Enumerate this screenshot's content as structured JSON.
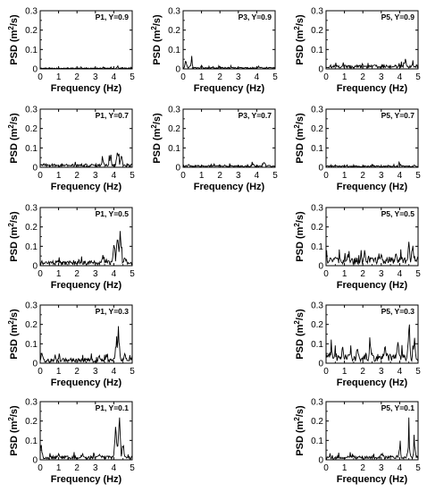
{
  "chart_data": {
    "type": "line",
    "layout": "grid",
    "rows": 5,
    "columns": [
      "P1",
      "P3",
      "P5"
    ],
    "xlabel": "Frequency (Hz)",
    "ylabel": "PSD (m²/s)",
    "ylabel_parts": {
      "prefix": "PSD (m",
      "sup": "2",
      "suffix": "/s)"
    },
    "xlim": [
      0,
      5
    ],
    "ylim": [
      0,
      0.3
    ],
    "xticks": [
      0,
      1,
      2,
      3,
      4,
      5
    ],
    "yticks": [
      0,
      0.1,
      0.2,
      0.3
    ],
    "line_color": "#000000",
    "panels": [
      {
        "row": 0,
        "col": 0,
        "label": "P1, Y=0.9",
        "peaks": [
          [
            0.5,
            0.004
          ],
          [
            2.5,
            0.004
          ],
          [
            4.2,
            0.012
          ],
          [
            4.6,
            0.006
          ]
        ],
        "base": 0.003
      },
      {
        "row": 0,
        "col": 1,
        "label": "P3, Y=0.9",
        "peaks": [
          [
            0.15,
            0.05
          ],
          [
            0.45,
            0.04
          ],
          [
            1.0,
            0.02
          ],
          [
            2.0,
            0.012
          ],
          [
            3.5,
            0.008
          ]
        ],
        "base": 0.005
      },
      {
        "row": 0,
        "col": 2,
        "label": "P5, Y=0.9",
        "peaks": [
          [
            0.6,
            0.02
          ],
          [
            2.0,
            0.02
          ],
          [
            3.3,
            0.025
          ],
          [
            4.3,
            0.06
          ],
          [
            4.7,
            0.03
          ]
        ],
        "base": 0.012
      },
      {
        "row": 1,
        "col": 0,
        "label": "P1, Y=0.7",
        "peaks": [
          [
            0.2,
            0.025
          ],
          [
            3.4,
            0.05
          ],
          [
            3.8,
            0.06
          ],
          [
            4.2,
            0.12
          ],
          [
            4.4,
            0.08
          ]
        ],
        "base": 0.01
      },
      {
        "row": 1,
        "col": 1,
        "label": "P3, Y=0.7",
        "peaks": [
          [
            0.3,
            0.02
          ],
          [
            2.0,
            0.012
          ],
          [
            3.8,
            0.025
          ],
          [
            4.4,
            0.04
          ]
        ],
        "base": 0.006
      },
      {
        "row": 1,
        "col": 2,
        "label": "P5, Y=0.7",
        "peaks": [
          [
            0.5,
            0.015
          ],
          [
            2.5,
            0.015
          ],
          [
            4.0,
            0.02
          ],
          [
            4.8,
            0.015
          ]
        ],
        "base": 0.005
      },
      {
        "row": 2,
        "col": 0,
        "label": "P1, Y=0.5",
        "peaks": [
          [
            0.3,
            0.03
          ],
          [
            1.5,
            0.025
          ],
          [
            3.4,
            0.06
          ],
          [
            4.0,
            0.13
          ],
          [
            4.2,
            0.23
          ],
          [
            4.35,
            0.2
          ],
          [
            4.6,
            0.06
          ]
        ],
        "base": 0.015
      },
      {
        "row": 2,
        "col": 2,
        "label": "P5, Y=0.5",
        "peaks": [
          [
            0.5,
            0.07
          ],
          [
            1.2,
            0.08
          ],
          [
            2.1,
            0.09
          ],
          [
            3.0,
            0.07
          ],
          [
            3.8,
            0.09
          ],
          [
            4.5,
            0.13
          ],
          [
            4.7,
            0.15
          ]
        ],
        "base": 0.025
      },
      {
        "row": 3,
        "col": 0,
        "label": "P1, Y=0.3",
        "peaks": [
          [
            0.1,
            0.08
          ],
          [
            1.0,
            0.03
          ],
          [
            3.2,
            0.05
          ],
          [
            3.6,
            0.05
          ],
          [
            4.15,
            0.16
          ],
          [
            4.25,
            0.22
          ],
          [
            4.6,
            0.06
          ]
        ],
        "base": 0.015
      },
      {
        "row": 3,
        "col": 2,
        "label": "P5, Y=0.3",
        "peaks": [
          [
            0.3,
            0.09
          ],
          [
            0.9,
            0.1
          ],
          [
            1.7,
            0.12
          ],
          [
            2.4,
            0.11
          ],
          [
            3.2,
            0.12
          ],
          [
            3.9,
            0.14
          ],
          [
            4.5,
            0.2
          ],
          [
            4.8,
            0.15
          ]
        ],
        "base": 0.03
      },
      {
        "row": 4,
        "col": 0,
        "label": "P1, Y=0.1",
        "peaks": [
          [
            0.05,
            0.09
          ],
          [
            1.0,
            0.04
          ],
          [
            2.3,
            0.04
          ],
          [
            3.2,
            0.04
          ],
          [
            4.1,
            0.18
          ],
          [
            4.3,
            0.25
          ],
          [
            4.5,
            0.1
          ]
        ],
        "base": 0.012
      },
      {
        "row": 4,
        "col": 2,
        "label": "P5, Y=0.1",
        "peaks": [
          [
            0.2,
            0.025
          ],
          [
            1.5,
            0.03
          ],
          [
            3.0,
            0.035
          ],
          [
            4.0,
            0.07
          ],
          [
            4.5,
            0.11
          ],
          [
            4.8,
            0.09
          ]
        ],
        "base": 0.012
      }
    ]
  }
}
